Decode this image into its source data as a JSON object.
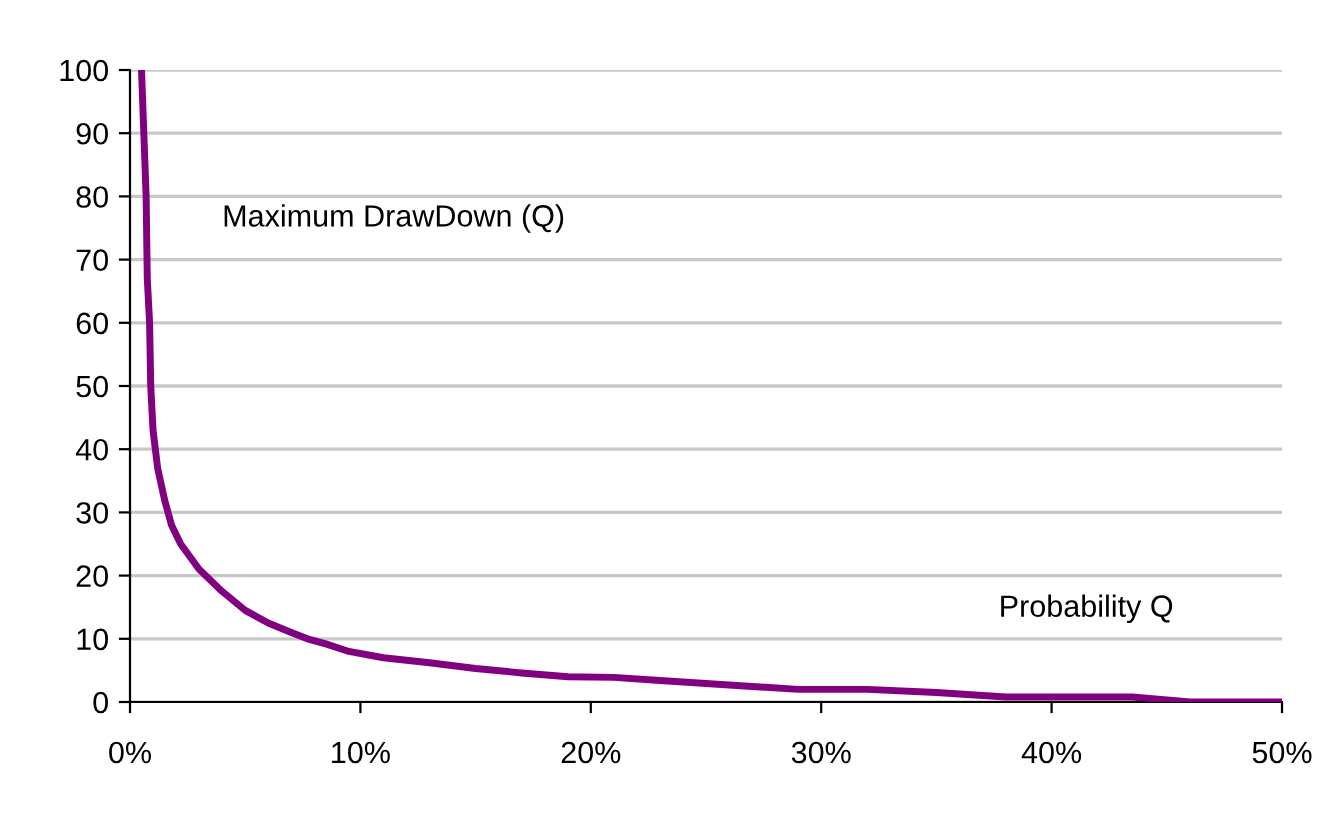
{
  "chart_data": {
    "type": "line",
    "xlabel": "Probability Q",
    "ylabel": "Maximum DrawDown (Q)",
    "series": [
      {
        "color": "#800080",
        "x": [
          0.5,
          0.6,
          0.7,
          0.75,
          0.85,
          0.9,
          1.0,
          1.2,
          1.5,
          1.8,
          2.2,
          3,
          4,
          5,
          6,
          7,
          7.7,
          8.5,
          9.5,
          11,
          13,
          15,
          17,
          19,
          21,
          23,
          26,
          29,
          32,
          35,
          38,
          41,
          43.5,
          46,
          50
        ],
        "values": [
          100,
          90,
          80,
          67,
          60,
          50,
          43,
          37,
          32,
          28,
          25,
          21,
          17.5,
          14.5,
          12.5,
          11,
          10,
          9.2,
          8,
          7,
          6.2,
          5.3,
          4.6,
          4,
          3.9,
          3.4,
          2.7,
          2,
          2,
          1.5,
          0.8,
          0.8,
          0.8,
          0,
          0
        ]
      }
    ],
    "xlim": [
      0,
      50
    ],
    "ylim": [
      0,
      100
    ],
    "xticks": [
      {
        "value": 0,
        "label": "0%"
      },
      {
        "value": 10,
        "label": "10%"
      },
      {
        "value": 20,
        "label": "20%"
      },
      {
        "value": 30,
        "label": "30%"
      },
      {
        "value": 40,
        "label": "40%"
      },
      {
        "value": 50,
        "label": "50%"
      }
    ],
    "yticks": [
      0,
      10,
      20,
      30,
      40,
      50,
      60,
      70,
      80,
      90,
      100
    ],
    "grid": "y",
    "line_style": "solid",
    "marker": "none"
  }
}
